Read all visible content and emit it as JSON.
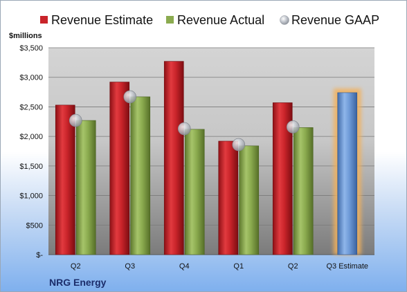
{
  "chart_data": {
    "type": "bar",
    "ylabel": "$millions",
    "caption": "NRG Energy",
    "categories": [
      "Q2",
      "Q3",
      "Q4",
      "Q1",
      "Q2",
      "Q3 Estimate"
    ],
    "ylim": [
      0,
      3500
    ],
    "yticks": [
      0,
      500,
      1000,
      1500,
      2000,
      2500,
      3000,
      3500
    ],
    "ytick_labels": [
      "$-",
      "$500",
      "$1,000",
      "$1,500",
      "$2,000",
      "$2,500",
      "$3,000",
      "$3,500"
    ],
    "grid": true,
    "legend_position": "top",
    "series": [
      {
        "name": "Revenue Estimate",
        "kind": "bar",
        "color": "#c9242a",
        "values": [
          2530,
          2920,
          3270,
          1920,
          2570,
          null
        ]
      },
      {
        "name": "Revenue Actual",
        "kind": "bar",
        "color": "#8bab4f",
        "values": [
          2270,
          2670,
          2120,
          1840,
          2150,
          null
        ]
      },
      {
        "name": "Revenue GAAP",
        "kind": "marker",
        "color": "#b8bcc4",
        "values": [
          2270,
          2670,
          2130,
          1860,
          2160,
          null
        ]
      },
      {
        "name": "Q3 Estimate",
        "kind": "bar",
        "color": "#6f9bd8",
        "highlight": "#f2b15c",
        "values": [
          null,
          null,
          null,
          null,
          null,
          2740
        ]
      }
    ]
  }
}
